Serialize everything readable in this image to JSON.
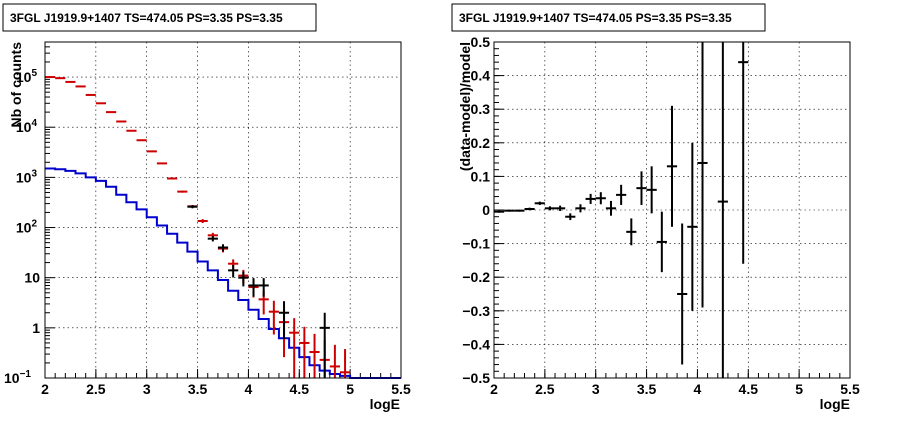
{
  "chart_data": [
    {
      "type": "line",
      "title": "3FGL J1919.9+1407 TS=474.05 PS=3.35 PS=3.35",
      "xlabel": "logE",
      "ylabel": "Nb of counts",
      "xlim": [
        2,
        5.5
      ],
      "ylim": [
        0.1,
        500000
      ],
      "yscale": "log",
      "grid": true,
      "x_ticks": [
        "2",
        "2.5",
        "3",
        "3.5",
        "4",
        "4.5",
        "5",
        "5.5"
      ],
      "y_ticks": [
        {
          "value": 0.1,
          "label": "10",
          "exp": "−1"
        },
        {
          "value": 1,
          "label": "1",
          "exp": ""
        },
        {
          "value": 10,
          "label": "10",
          "exp": ""
        },
        {
          "value": 100,
          "label": "10",
          "exp": "2"
        },
        {
          "value": 1000,
          "label": "10",
          "exp": "3"
        },
        {
          "value": 10000,
          "label": "10",
          "exp": "4"
        },
        {
          "value": 100000,
          "label": "10",
          "exp": "5"
        }
      ],
      "series": [
        {
          "kind": "step",
          "color": "#0000cc",
          "bin_width": 0.1,
          "x": [
            2.05,
            2.15,
            2.25,
            2.35,
            2.45,
            2.55,
            2.65,
            2.75,
            2.85,
            2.95,
            3.05,
            3.15,
            3.25,
            3.35,
            3.45,
            3.55,
            3.65,
            3.75,
            3.85,
            3.95,
            4.05,
            4.15,
            4.25,
            4.35,
            4.45,
            4.55,
            4.65,
            4.75,
            4.85,
            4.95,
            5.05,
            5.15,
            5.25,
            5.35,
            5.45
          ],
          "y": [
            1500,
            1450,
            1350,
            1200,
            1000,
            850,
            650,
            450,
            320,
            230,
            160,
            110,
            75,
            50,
            33,
            21,
            14,
            9,
            5.5,
            3.6,
            2.3,
            1.5,
            0.95,
            0.62,
            0.4,
            0.26,
            0.18,
            0.14,
            0.12,
            0.11,
            0.1,
            0.1,
            0.1,
            0.1,
            0.1
          ]
        },
        {
          "kind": "errorbar",
          "color": "#cc0000",
          "x": [
            2.05,
            2.15,
            2.25,
            2.35,
            2.45,
            2.55,
            2.65,
            2.75,
            2.85,
            2.95,
            3.05,
            3.15,
            3.25,
            3.35,
            3.45,
            3.55,
            3.65,
            3.75,
            3.85,
            3.95,
            4.05,
            4.15,
            4.25,
            4.35,
            4.45,
            4.55,
            4.65,
            4.75,
            4.85,
            4.95
          ],
          "y": [
            100000,
            95000,
            80000,
            65000,
            44000,
            30000,
            20000,
            13000,
            8500,
            5500,
            3300,
            1900,
            950,
            520,
            265,
            135,
            70,
            38,
            19,
            11,
            6.5,
            3.7,
            2.1,
            1.3,
            0.8,
            0.5,
            0.33,
            0.23,
            0.17,
            0.13
          ],
          "yerr_factor": [
            0.01,
            0.01,
            0.01,
            0.01,
            0.01,
            0.01,
            0.01,
            0.01,
            0.012,
            0.013,
            0.018,
            0.024,
            0.033,
            0.045,
            0.06,
            0.09,
            0.12,
            0.16,
            0.22,
            0.3,
            0.38,
            0.5,
            0.65,
            0.8,
            0.95,
            1.1,
            1.3,
            1.5,
            1.7,
            1.9
          ]
        },
        {
          "kind": "errorbar",
          "color": "#000000",
          "x": [
            3.45,
            3.65,
            3.75,
            3.85,
            3.95,
            4.05,
            4.15,
            4.35,
            4.75
          ],
          "y": [
            260,
            60,
            40,
            14,
            10,
            7,
            7,
            2,
            1
          ],
          "yerr_factor": [
            0.07,
            0.12,
            0.16,
            0.28,
            0.33,
            0.4,
            0.4,
            0.7,
            1.0
          ]
        }
      ]
    },
    {
      "type": "scatter",
      "title": "3FGL J1919.9+1407 TS=474.05 PS=3.35 PS=3.35",
      "xlabel": "logE",
      "ylabel": "(data-model)/model",
      "xlim": [
        2,
        5.5
      ],
      "ylim": [
        -0.5,
        0.5
      ],
      "grid": true,
      "x_ticks": [
        "2",
        "2.5",
        "3",
        "3.5",
        "4",
        "4.5",
        "5",
        "5.5"
      ],
      "y_ticks": [
        "−0.5",
        "−0.4",
        "−0.3",
        "−0.2",
        "−0.1",
        "0",
        "0.1",
        "0.2",
        "0.3",
        "0.4",
        "0.5"
      ],
      "series": [
        {
          "kind": "errorbar",
          "color": "#000000",
          "x_half_width": 0.05,
          "x": [
            2.05,
            2.15,
            2.25,
            2.35,
            2.45,
            2.55,
            2.65,
            2.75,
            2.85,
            2.95,
            3.05,
            3.15,
            3.25,
            3.35,
            3.45,
            3.55,
            3.65,
            3.75,
            3.85,
            3.95,
            4.05,
            4.25,
            4.45
          ],
          "y": [
            -0.005,
            -0.002,
            -0.002,
            0.003,
            0.02,
            0.005,
            0.005,
            -0.02,
            0.005,
            0.033,
            0.035,
            0.005,
            0.045,
            -0.065,
            0.065,
            0.06,
            -0.095,
            0.13,
            -0.25,
            -0.05,
            0.14,
            0.025,
            0.44
          ],
          "yerr": [
            0.003,
            0.003,
            0.003,
            0.004,
            0.005,
            0.006,
            0.008,
            0.01,
            0.012,
            0.015,
            0.018,
            0.022,
            0.03,
            0.04,
            0.05,
            0.07,
            0.09,
            0.18,
            0.21,
            0.25,
            0.43,
            0.6,
            0.6
          ]
        }
      ]
    }
  ]
}
